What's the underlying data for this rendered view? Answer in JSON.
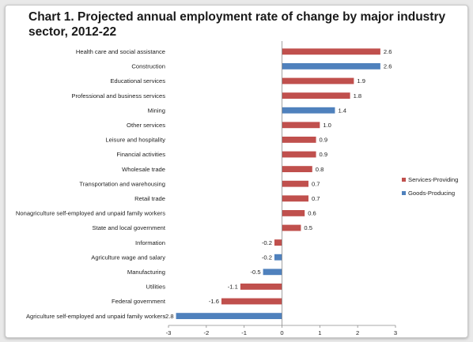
{
  "chart_data": {
    "type": "bar",
    "orientation": "horizontal",
    "title": "Chart 1. Projected annual employment rate of change by major industry sector, 2012-22",
    "xlabel": "",
    "ylabel": "",
    "xlim": [
      -3,
      3
    ],
    "xticks": [
      "-3",
      "-2",
      "-1",
      "0",
      "1",
      "2",
      "3"
    ],
    "grid": false,
    "legend_position": "right",
    "series": [
      {
        "name": "Services-Providing",
        "color": "#c0504d"
      },
      {
        "name": "Goods-Producing",
        "color": "#4f81bd"
      }
    ],
    "bars": [
      {
        "category": "Health care and social assistance",
        "value": 2.6,
        "label": "2.6",
        "series": "Services-Providing"
      },
      {
        "category": "Construction",
        "value": 2.6,
        "label": "2.6",
        "series": "Goods-Producing"
      },
      {
        "category": "Educational services",
        "value": 1.9,
        "label": "1.9",
        "series": "Services-Providing"
      },
      {
        "category": "Professional and business services",
        "value": 1.8,
        "label": "1.8",
        "series": "Services-Providing"
      },
      {
        "category": "Mining",
        "value": 1.4,
        "label": "1.4",
        "series": "Goods-Producing"
      },
      {
        "category": "Other services",
        "value": 1.0,
        "label": "1.0",
        "series": "Services-Providing"
      },
      {
        "category": "Leisure and hospitality",
        "value": 0.9,
        "label": "0.9",
        "series": "Services-Providing"
      },
      {
        "category": "Financial activities",
        "value": 0.9,
        "label": "0.9",
        "series": "Services-Providing"
      },
      {
        "category": "Wholesale trade",
        "value": 0.8,
        "label": "0.8",
        "series": "Services-Providing"
      },
      {
        "category": "Transportation and warehousing",
        "value": 0.7,
        "label": "0.7",
        "series": "Services-Providing"
      },
      {
        "category": "Retail trade",
        "value": 0.7,
        "label": "0.7",
        "series": "Services-Providing"
      },
      {
        "category": "Nonagriculture self-employed and unpaid family workers",
        "value": 0.6,
        "label": "0.6",
        "series": "Services-Providing"
      },
      {
        "category": "State and local government",
        "value": 0.5,
        "label": "0.5",
        "series": "Services-Providing"
      },
      {
        "category": "Information",
        "value": -0.2,
        "label": "-0.2",
        "series": "Services-Providing"
      },
      {
        "category": "Agriculture wage and salary",
        "value": -0.2,
        "label": "-0.2",
        "series": "Goods-Producing"
      },
      {
        "category": "Manufacturing",
        "value": -0.5,
        "label": "-0.5",
        "series": "Goods-Producing"
      },
      {
        "category": "Utilities",
        "value": -1.1,
        "label": "-1.1",
        "series": "Services-Providing"
      },
      {
        "category": "Federal government",
        "value": -1.6,
        "label": "-1.6",
        "series": "Services-Providing"
      },
      {
        "category": "Agriculture self-employed and unpaid family workers",
        "value": -2.8,
        "label": "-2.8",
        "series": "Goods-Producing"
      }
    ]
  }
}
